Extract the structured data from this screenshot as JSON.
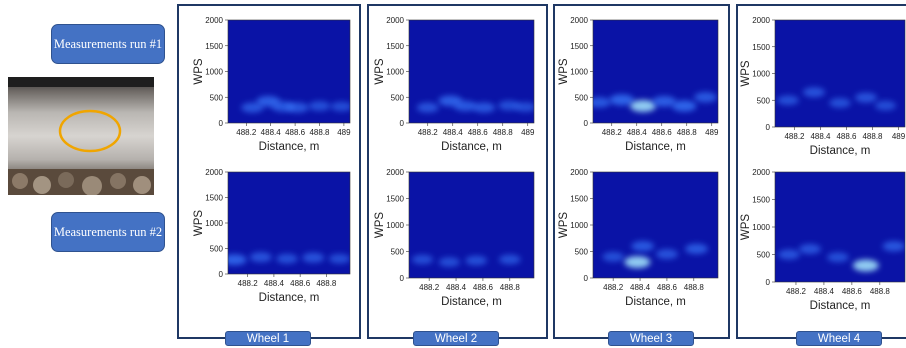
{
  "labels": {
    "run1": "Measurements run #1",
    "run2": "Measurements run #2"
  },
  "photo": {
    "icon": "rail-defect-photo",
    "highlight_color": "#f0a500"
  },
  "colors": {
    "background": "#0a13a6",
    "blob": "#3a7dff",
    "hot": "#a8ecff",
    "frame": "#1f3864",
    "label": "#4472c4"
  },
  "wheels": [
    {
      "label": "Wheel 1"
    },
    {
      "label": "Wheel 2"
    },
    {
      "label": "Wheel 3"
    },
    {
      "label": "Wheel 4"
    }
  ],
  "chart_data": [
    {
      "type": "heatmap",
      "wheel": "Wheel 1",
      "run": 1,
      "xlabel": "Distance, m",
      "ylabel": "WPS",
      "xticks": [
        "488.2",
        "488.4",
        "488.6",
        "488.8",
        "489"
      ],
      "yticks": [
        "0",
        "500",
        "1000",
        "1500",
        "2000"
      ],
      "xlim": [
        488.05,
        489.05
      ],
      "ylim": [
        0,
        2000
      ],
      "blobs": [
        {
          "x": 488.25,
          "y": 300,
          "v": 0.55
        },
        {
          "x": 488.38,
          "y": 420,
          "v": 0.7
        },
        {
          "x": 488.5,
          "y": 320,
          "v": 0.6
        },
        {
          "x": 488.62,
          "y": 300,
          "v": 0.55
        },
        {
          "x": 488.8,
          "y": 330,
          "v": 0.45
        },
        {
          "x": 488.98,
          "y": 320,
          "v": 0.4
        }
      ]
    },
    {
      "type": "heatmap",
      "wheel": "Wheel 2",
      "run": 1,
      "xlabel": "Distance, m",
      "ylabel": "WPS",
      "xticks": [
        "488.2",
        "488.4",
        "488.6",
        "488.8",
        "489"
      ],
      "yticks": [
        "0",
        "500",
        "1000",
        "1500",
        "2000"
      ],
      "xlim": [
        488.05,
        489.05
      ],
      "ylim": [
        0,
        2000
      ],
      "blobs": [
        {
          "x": 488.2,
          "y": 300,
          "v": 0.5
        },
        {
          "x": 488.38,
          "y": 430,
          "v": 0.7
        },
        {
          "x": 488.5,
          "y": 330,
          "v": 0.6
        },
        {
          "x": 488.65,
          "y": 300,
          "v": 0.55
        },
        {
          "x": 488.85,
          "y": 340,
          "v": 0.45
        },
        {
          "x": 488.98,
          "y": 310,
          "v": 0.4
        }
      ]
    },
    {
      "type": "heatmap",
      "wheel": "Wheel 3",
      "run": 1,
      "xlabel": "Distance, m",
      "ylabel": "WPS",
      "xticks": [
        "488.2",
        "488.4",
        "488.6",
        "488.8",
        "489"
      ],
      "yticks": [
        "0",
        "500",
        "1000",
        "1500",
        "2000"
      ],
      "xlim": [
        488.05,
        489.05
      ],
      "ylim": [
        0,
        2000
      ],
      "blobs": [
        {
          "x": 488.1,
          "y": 400,
          "v": 0.6
        },
        {
          "x": 488.28,
          "y": 450,
          "v": 0.8
        },
        {
          "x": 488.45,
          "y": 330,
          "v": 1.0
        },
        {
          "x": 488.62,
          "y": 420,
          "v": 0.7
        },
        {
          "x": 488.78,
          "y": 330,
          "v": 0.8
        },
        {
          "x": 488.95,
          "y": 500,
          "v": 0.6
        }
      ]
    },
    {
      "type": "heatmap",
      "wheel": "Wheel 4",
      "run": 1,
      "xlabel": "Distance, m",
      "ylabel": "WPS",
      "xticks": [
        "488.2",
        "488.4",
        "488.6",
        "488.8",
        "489"
      ],
      "yticks": [
        "0",
        "500",
        "1000",
        "1500",
        "2000"
      ],
      "xlim": [
        488.05,
        489.05
      ],
      "ylim": [
        0,
        2000
      ],
      "blobs": [
        {
          "x": 488.15,
          "y": 500,
          "v": 0.45
        },
        {
          "x": 488.35,
          "y": 650,
          "v": 0.5
        },
        {
          "x": 488.55,
          "y": 450,
          "v": 0.45
        },
        {
          "x": 488.75,
          "y": 550,
          "v": 0.5
        },
        {
          "x": 488.9,
          "y": 400,
          "v": 0.4
        }
      ]
    },
    {
      "type": "heatmap",
      "wheel": "Wheel 1",
      "run": 2,
      "xlabel": "Distance, m",
      "ylabel": "WPS",
      "xticks": [
        "488.2",
        "488.4",
        "488.6",
        "488.8"
      ],
      "yticks": [
        "0",
        "500",
        "1000",
        "1500",
        "2000"
      ],
      "xlim": [
        488.05,
        488.98
      ],
      "ylim": [
        0,
        2000
      ],
      "blobs": [
        {
          "x": 488.1,
          "y": 280,
          "v": 0.75
        },
        {
          "x": 488.3,
          "y": 330,
          "v": 0.5
        },
        {
          "x": 488.5,
          "y": 300,
          "v": 0.45
        },
        {
          "x": 488.7,
          "y": 320,
          "v": 0.5
        },
        {
          "x": 488.9,
          "y": 300,
          "v": 0.4
        }
      ]
    },
    {
      "type": "heatmap",
      "wheel": "Wheel 2",
      "run": 2,
      "xlabel": "Distance, m",
      "ylabel": "WPS",
      "xticks": [
        "488.2",
        "488.4",
        "488.6",
        "488.8"
      ],
      "yticks": [
        "0",
        "500",
        "1000",
        "1500",
        "2000"
      ],
      "xlim": [
        488.05,
        488.98
      ],
      "ylim": [
        0,
        2000
      ],
      "blobs": [
        {
          "x": 488.15,
          "y": 350,
          "v": 0.4
        },
        {
          "x": 488.35,
          "y": 300,
          "v": 0.4
        },
        {
          "x": 488.55,
          "y": 330,
          "v": 0.45
        },
        {
          "x": 488.8,
          "y": 350,
          "v": 0.45
        }
      ]
    },
    {
      "type": "heatmap",
      "wheel": "Wheel 3",
      "run": 2,
      "xlabel": "Distance, m",
      "ylabel": "WPS",
      "xticks": [
        "488.2",
        "488.4",
        "488.6",
        "488.8"
      ],
      "yticks": [
        "0",
        "500",
        "1000",
        "1500",
        "2000"
      ],
      "xlim": [
        488.05,
        488.98
      ],
      "ylim": [
        0,
        2000
      ],
      "blobs": [
        {
          "x": 488.2,
          "y": 400,
          "v": 0.45
        },
        {
          "x": 488.38,
          "y": 300,
          "v": 1.0
        },
        {
          "x": 488.42,
          "y": 600,
          "v": 0.6
        },
        {
          "x": 488.6,
          "y": 450,
          "v": 0.5
        },
        {
          "x": 488.82,
          "y": 550,
          "v": 0.6
        }
      ]
    },
    {
      "type": "heatmap",
      "wheel": "Wheel 4",
      "run": 2,
      "xlabel": "Distance, m",
      "ylabel": "WPS",
      "xticks": [
        "488.2",
        "488.4",
        "488.6",
        "488.8"
      ],
      "yticks": [
        "0",
        "500",
        "1000",
        "1500",
        "2000"
      ],
      "xlim": [
        488.05,
        488.98
      ],
      "ylim": [
        0,
        2000
      ],
      "blobs": [
        {
          "x": 488.15,
          "y": 500,
          "v": 0.5
        },
        {
          "x": 488.3,
          "y": 600,
          "v": 0.5
        },
        {
          "x": 488.5,
          "y": 450,
          "v": 0.45
        },
        {
          "x": 488.7,
          "y": 300,
          "v": 1.0
        },
        {
          "x": 488.9,
          "y": 650,
          "v": 0.55
        }
      ]
    }
  ]
}
